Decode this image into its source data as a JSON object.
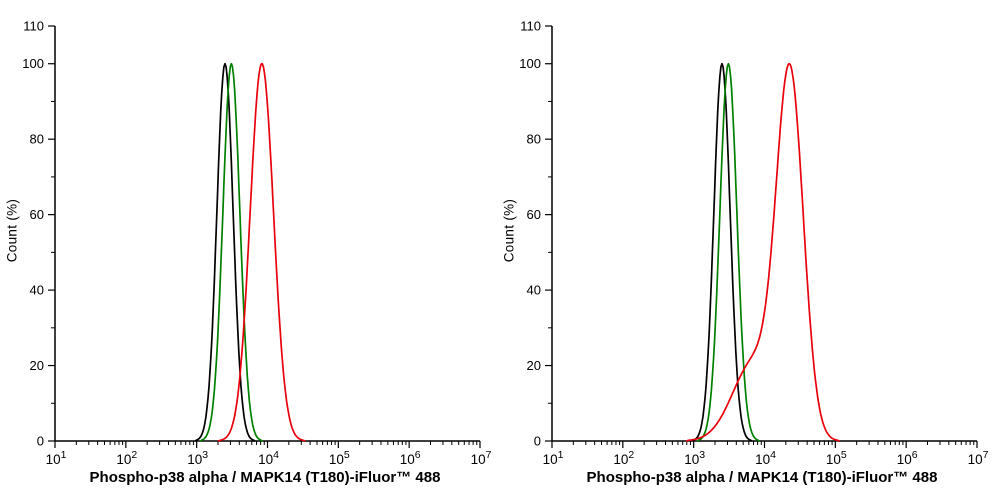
{
  "figure": {
    "background": "#ffffff",
    "panel_count": 2
  },
  "chart_data": [
    {
      "type": "line",
      "panel": "left",
      "title": "",
      "xlabel": "Phospho-p38 alpha / MAPK14 (T180)-iFluor™ 488",
      "ylabel": "Count  (%)",
      "x_scale": "log10",
      "x_log_range": [
        1,
        7
      ],
      "x_tick_base": "10",
      "x_tick_exponents": [
        1,
        2,
        3,
        4,
        5,
        6,
        7
      ],
      "y_range": [
        0,
        110
      ],
      "y_ticks": [
        0,
        20,
        40,
        60,
        80,
        100,
        110
      ],
      "grid": false,
      "legend": "none",
      "series": [
        {
          "name": "black-curve",
          "color": "#000000",
          "peak_x": 2500,
          "peak_y": 100,
          "components": [
            {
              "center_log10": 3.4,
              "sigma": 0.115,
              "height": 100
            }
          ]
        },
        {
          "name": "green-curve",
          "color": "#008000",
          "peak_x": 3100,
          "peak_y": 100,
          "components": [
            {
              "center_log10": 3.49,
              "sigma": 0.12,
              "height": 100
            }
          ]
        },
        {
          "name": "red-curve",
          "color": "#e8000b",
          "peak_x": 8300,
          "peak_y": 100,
          "components": [
            {
              "center_log10": 3.92,
              "sigma": 0.165,
              "height": 100
            }
          ]
        }
      ]
    },
    {
      "type": "line",
      "panel": "right",
      "title": "",
      "xlabel": "Phospho-p38 alpha / MAPK14 (T180)-iFluor™ 488",
      "ylabel": "Count  (%)",
      "x_scale": "log10",
      "x_log_range": [
        1,
        7
      ],
      "x_tick_base": "10",
      "x_tick_exponents": [
        1,
        2,
        3,
        4,
        5,
        6,
        7
      ],
      "y_range": [
        0,
        110
      ],
      "y_ticks": [
        0,
        20,
        40,
        60,
        80,
        100,
        110
      ],
      "grid": false,
      "legend": "none",
      "series": [
        {
          "name": "black-curve",
          "color": "#000000",
          "peak_x": 2500,
          "peak_y": 100,
          "components": [
            {
              "center_log10": 3.4,
              "sigma": 0.115,
              "height": 100
            }
          ]
        },
        {
          "name": "green-curve",
          "color": "#008000",
          "peak_x": 3100,
          "peak_y": 100,
          "components": [
            {
              "center_log10": 3.49,
              "sigma": 0.12,
              "height": 100
            }
          ]
        },
        {
          "name": "red-curve",
          "color": "#e8000b",
          "peak_x": 23000,
          "peak_y": 100,
          "components": [
            {
              "center_log10": 4.36,
              "sigma": 0.19,
              "height": 100
            },
            {
              "center_log10": 3.85,
              "sigma": 0.3,
              "height": 22
            }
          ]
        }
      ]
    }
  ]
}
